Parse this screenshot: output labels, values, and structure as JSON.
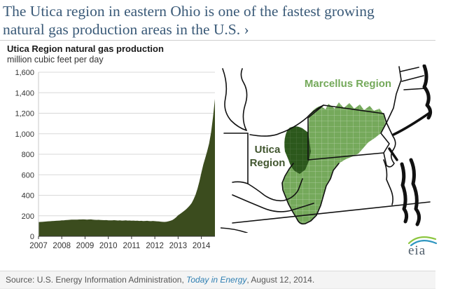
{
  "headline": {
    "text": "The Utica region in eastern Ohio is one of the fastest growing natural gas production areas in the U.S. ›"
  },
  "chart": {
    "title": "Utica Region natural gas production",
    "subtitle": "million cubic feet per day"
  },
  "chart_data": {
    "type": "area",
    "title": "Utica Region natural gas production",
    "ylabel": "million cubic feet per day",
    "series_name": "Utica Region natural gas production",
    "frequency": "monthly",
    "x_start": "2007-01",
    "x_end": "2014-08",
    "xticks": [
      "2007",
      "2008",
      "2009",
      "2010",
      "2011",
      "2012",
      "2013",
      "2014"
    ],
    "xtick_month_index": [
      0,
      12,
      24,
      36,
      48,
      60,
      72,
      84
    ],
    "yticks": [
      0,
      200,
      400,
      600,
      800,
      1000,
      1200,
      1400,
      1600
    ],
    "ylim": [
      0,
      1600
    ],
    "grid": true,
    "legend": false,
    "fill_color": "#3b4c1e",
    "values": [
      138,
      140,
      141,
      143,
      144,
      146,
      147,
      149,
      150,
      151,
      152,
      153,
      155,
      156,
      158,
      159,
      161,
      162,
      163,
      162,
      163,
      164,
      164,
      165,
      164,
      163,
      164,
      165,
      163,
      161,
      160,
      161,
      159,
      158,
      157,
      158,
      156,
      155,
      156,
      157,
      155,
      154,
      155,
      153,
      154,
      155,
      153,
      154,
      152,
      153,
      151,
      152,
      150,
      151,
      149,
      150,
      151,
      149,
      148,
      150,
      148,
      146,
      145,
      143,
      141,
      140,
      142,
      146,
      151,
      158,
      170,
      185,
      205,
      218,
      232,
      246,
      262,
      280,
      300,
      325,
      360,
      405,
      465,
      535,
      620,
      700,
      765,
      830,
      905,
      1015,
      1160,
      1340
    ]
  },
  "map": {
    "marcellus_label": "Marcellus Region",
    "utica_label_line1": "Utica",
    "utica_label_line2": "Region",
    "marcellus_color": "#75a95b",
    "utica_color": "#2c581c",
    "marcellus_label_color": "#74a95a",
    "utica_label_color": "#40552e"
  },
  "logo": {
    "text": "eia"
  },
  "source": {
    "prefix": "Source: U.S. Energy Information Administration, ",
    "link": "Today in Energy",
    "suffix": ", August 12, 2014."
  }
}
